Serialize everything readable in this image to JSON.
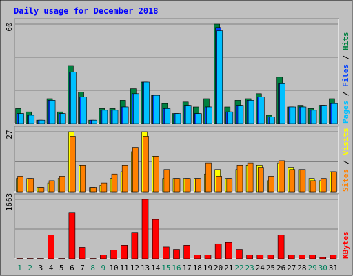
{
  "chart_data": {
    "type": "bar",
    "title": "Daily usage for December 2018",
    "colors": {
      "background": "#c0c0c0",
      "title": "#0000ff",
      "hits": "#008040",
      "files": "#0040ff",
      "pages": "#00c0ff",
      "visits": "#ffff00",
      "sites": "#ff8000",
      "kbytes": "#ff0000",
      "weekday": "#000000",
      "weekend": "#00805c"
    },
    "days": [
      "1",
      "2",
      "3",
      "4",
      "5",
      "6",
      "7",
      "8",
      "9",
      "10",
      "11",
      "12",
      "13",
      "14",
      "15",
      "16",
      "17",
      "18",
      "19",
      "20",
      "21",
      "22",
      "23",
      "24",
      "25",
      "26",
      "27",
      "28",
      "29",
      "30",
      "31"
    ],
    "weekend_days": [
      "1",
      "2",
      "8",
      "9",
      "15",
      "16",
      "22",
      "23",
      "29",
      "30"
    ],
    "panels": [
      {
        "id": "usage",
        "ymax": 60,
        "ymax_label": "60",
        "legend": [
          {
            "text": "Pages",
            "color": "#00c0ff"
          },
          {
            "text": " / ",
            "color": "#000000"
          },
          {
            "text": "Files",
            "color": "#0040ff"
          },
          {
            "text": " / ",
            "color": "#000000"
          },
          {
            "text": "Hits",
            "color": "#008040"
          }
        ],
        "series": [
          {
            "name": "Hits",
            "color": "#008040",
            "values": [
              9,
              7,
              2,
              15,
              7,
              35,
              19,
              2,
              9,
              9,
              14,
              21,
              25,
              17,
              12,
              6,
              13,
              10,
              15,
              60,
              10,
              14,
              15,
              18,
              5,
              28,
              10,
              11,
              9,
              11,
              15
            ]
          },
          {
            "name": "Files",
            "color": "#0040ff",
            "values": [
              6,
              5,
              2,
              14,
              6,
              31,
              16,
              2,
              8,
              8,
              10,
              18,
              25,
              17,
              9,
              6,
              11,
              6,
              10,
              58,
              7,
              11,
              14,
              16,
              4,
              24,
              10,
              10,
              8,
              11,
              12
            ]
          },
          {
            "name": "Pages",
            "color": "#00c0ff",
            "values": [
              6,
              5,
              2,
              14,
              6,
              31,
              16,
              2,
              8,
              8,
              10,
              18,
              25,
              17,
              9,
              6,
              11,
              6,
              10,
              56,
              7,
              11,
              14,
              16,
              4,
              24,
              10,
              10,
              8,
              11,
              12
            ]
          }
        ]
      },
      {
        "id": "visits",
        "ymax": 27,
        "ymax_label": "27",
        "legend": [
          {
            "text": "Sites",
            "color": "#ff8000"
          },
          {
            "text": " / ",
            "color": "#000000"
          },
          {
            "text": "Visits",
            "color": "#ffff00"
          }
        ],
        "series": [
          {
            "name": "Visits",
            "color": "#ffff00",
            "values": [
              6,
              6,
              2,
              4,
              6,
              27,
              12,
              2,
              3,
              6,
              9,
              18,
              27,
              16,
              6,
              6,
              6,
              6,
              8,
              10,
              6,
              10,
              12,
              12,
              5,
              13,
              11,
              10,
              6,
              5,
              9
            ]
          },
          {
            "name": "Sites",
            "color": "#ff8000",
            "values": [
              7,
              6,
              2,
              5,
              7,
              25,
              12,
              2,
              4,
              8,
              12,
              20,
              25,
              16,
              10,
              6,
              6,
              6,
              13,
              7,
              6,
              12,
              13,
              11,
              7,
              14,
              10,
              10,
              5,
              6,
              9
            ]
          }
        ]
      },
      {
        "id": "kbytes",
        "ymax": 1663,
        "ymax_label": "1663",
        "legend": [
          {
            "text": "KBytes",
            "color": "#ff0000"
          }
        ],
        "series": [
          {
            "name": "KBytes",
            "color": "#ff0000",
            "values": [
              10,
              10,
              10,
              670,
              10,
              1300,
              320,
              10,
              110,
              240,
              380,
              740,
              1663,
              1100,
              330,
              260,
              380,
              110,
              110,
              420,
              460,
              260,
              110,
              110,
              110,
              670,
              110,
              110,
              110,
              40,
              110
            ]
          }
        ]
      }
    ]
  }
}
